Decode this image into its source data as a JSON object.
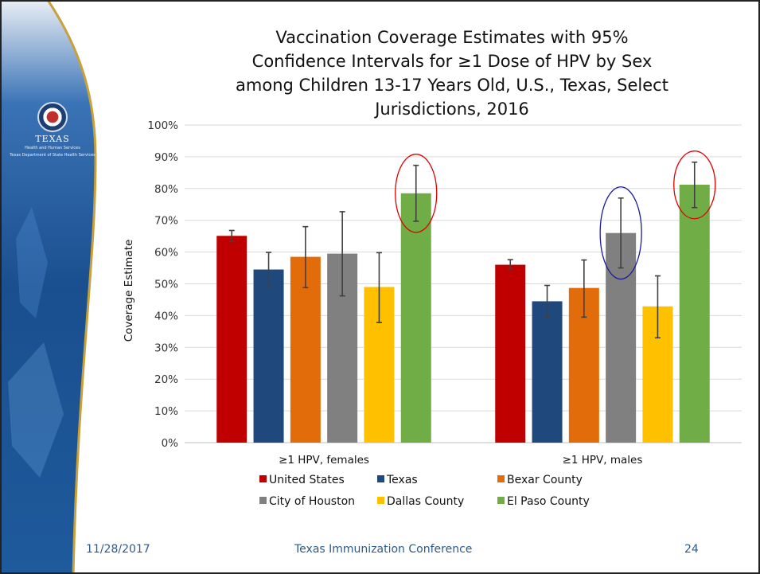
{
  "slide": {
    "footer_date": "11/28/2017",
    "footer_title": "Texas Immunization Conference",
    "page_number": "24",
    "logo": {
      "name": "TEXAS",
      "line1": "Health and Human Services",
      "line2": "Texas Department of State Health Services"
    }
  },
  "chart_data": {
    "type": "bar",
    "title_lines": [
      "Vaccination Coverage Estimates with 95%",
      "Confidence Intervals for ≥1 Dose of HPV by Sex",
      "among Children 13-17 Years Old, U.S., Texas, Select",
      "Jurisdictions, 2016"
    ],
    "ylabel": "Coverage Estimate",
    "xlabel": "",
    "ylim": [
      0,
      100
    ],
    "yticks": [
      "0%",
      "10%",
      "20%",
      "30%",
      "40%",
      "50%",
      "60%",
      "70%",
      "80%",
      "90%",
      "100%"
    ],
    "grid": true,
    "legend_position": "bottom",
    "categories": [
      "≥1 HPV, females",
      "≥1 HPV, males"
    ],
    "series": [
      {
        "name": "United States",
        "color": "#c00000",
        "values": [
          65.1,
          56.0
        ],
        "ci_low": [
          63.3,
          54.7
        ],
        "ci_high": [
          66.8,
          57.6
        ]
      },
      {
        "name": "Texas",
        "color": "#1f497d",
        "values": [
          54.5,
          44.5
        ],
        "ci_low": [
          49.2,
          39.5
        ],
        "ci_high": [
          59.9,
          49.5
        ]
      },
      {
        "name": "Bexar County",
        "color": "#e36c0a",
        "values": [
          58.5,
          48.7
        ],
        "ci_low": [
          48.8,
          39.5
        ],
        "ci_high": [
          68.0,
          57.5
        ]
      },
      {
        "name": "City of Houston",
        "color": "#808080",
        "values": [
          59.5,
          66.0
        ],
        "ci_low": [
          46.2,
          55.0
        ],
        "ci_high": [
          72.7,
          77.0
        ]
      },
      {
        "name": "Dallas County",
        "color": "#ffc000",
        "values": [
          49.0,
          42.9
        ],
        "ci_low": [
          37.8,
          33.0
        ],
        "ci_high": [
          59.8,
          52.5
        ]
      },
      {
        "name": "El Paso County",
        "color": "#70ad47",
        "values": [
          78.5,
          81.2
        ],
        "ci_low": [
          69.7,
          74.0
        ],
        "ci_high": [
          87.3,
          88.3
        ]
      }
    ],
    "highlights": [
      {
        "category": 0,
        "series": 5,
        "color": "#e00000"
      },
      {
        "category": 1,
        "series": 3,
        "color": "#1a1a9c"
      },
      {
        "category": 1,
        "series": 5,
        "color": "#e00000"
      }
    ]
  }
}
